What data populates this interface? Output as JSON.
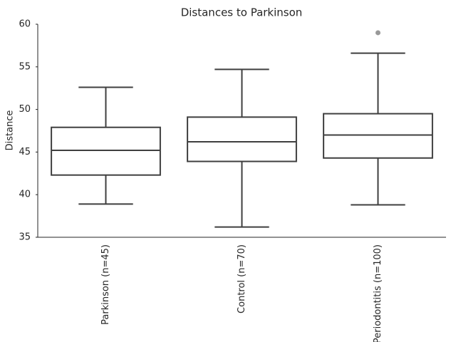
{
  "chart_data": {
    "type": "box",
    "title": "Distances to Parkinson",
    "ylabel": "Distance",
    "categories": [
      "Parkinson (n=45)",
      "Control (n=70)",
      "Periodontitis (n=100)"
    ],
    "boxes": [
      {
        "low": 38.9,
        "q1": 42.3,
        "median": 45.2,
        "q3": 47.9,
        "high": 52.6,
        "outliers": []
      },
      {
        "low": 36.2,
        "q1": 43.9,
        "median": 46.2,
        "q3": 49.1,
        "high": 54.7,
        "outliers": []
      },
      {
        "low": 38.8,
        "q1": 44.3,
        "median": 47.0,
        "q3": 49.5,
        "high": 56.6,
        "outliers": [
          59.0
        ]
      }
    ],
    "box_color": "#ffffff",
    "line_color": "#3f3f3f",
    "outlier_color": "#999999",
    "ylim": [
      35,
      60
    ],
    "yticks": [
      35,
      40,
      45,
      50,
      55,
      60
    ]
  }
}
